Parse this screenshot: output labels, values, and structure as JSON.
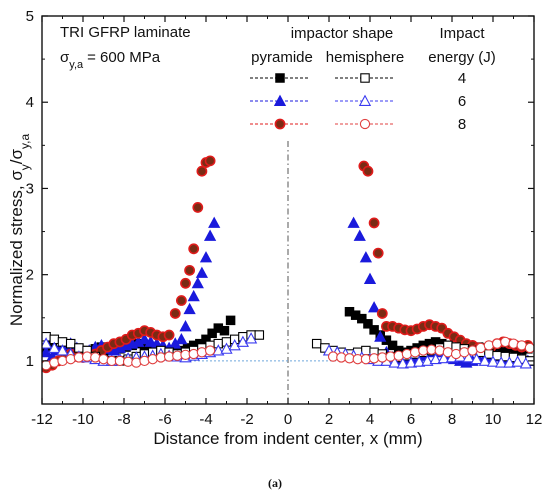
{
  "chart_data": {
    "type": "scatter",
    "title": "",
    "xlabel": "Distance from indent center, x (mm)",
    "ylabel": "Normalized stress, σy/σy,a",
    "xlim": [
      -12,
      12
    ],
    "ylim": [
      0.5,
      5
    ],
    "x_ticks": [
      -12,
      -10,
      -8,
      -6,
      -4,
      -2,
      0,
      2,
      4,
      6,
      8,
      10,
      12
    ],
    "y_ticks": [
      1,
      2,
      3,
      4,
      5
    ],
    "annotations": {
      "material": "TRI GFRP laminate",
      "stress_symbol": "σ",
      "stress_sub": "y,a",
      "stress_value": "= 600 MPa"
    },
    "legend": {
      "header_group": "impactor shape",
      "col_pyramide": "pyramide",
      "col_hemisphere": "hemisphere",
      "energy_title_1": "Impact",
      "energy_title_2": "energy (J)",
      "placement": "top-right",
      "energies": [
        "4",
        "6",
        "8"
      ]
    },
    "reference_line": {
      "y": 1.0,
      "style": "dotted",
      "color": "#6fa8dc"
    },
    "center_line": {
      "x": 0,
      "style": "dashed",
      "color": "#555555"
    },
    "series": [
      {
        "shape": "pyramide",
        "energy": "4",
        "marker": "square",
        "filled": true,
        "color": "#000000",
        "x": [
          -11.8,
          -11.5,
          -11.2,
          -10.9,
          -10.6,
          -10.3,
          -10.0,
          -9.7,
          -9.4,
          -9.1,
          -8.8,
          -8.5,
          -8.2,
          -7.9,
          -7.6,
          -7.3,
          -7.0,
          -6.7,
          -6.4,
          -6.1,
          -5.8,
          -5.5,
          -5.2,
          -4.9,
          -4.6,
          -4.3,
          -4.0,
          -3.7,
          -3.4,
          -3.1,
          -2.8,
          3.0,
          3.3,
          3.6,
          3.9,
          4.2,
          4.5,
          4.8,
          5.1,
          5.4,
          5.7,
          6.0,
          6.3,
          6.6,
          6.9,
          7.2,
          7.5,
          7.8,
          8.1,
          8.4,
          8.7,
          9.0,
          9.3,
          9.6,
          9.9,
          10.2,
          10.5,
          10.8,
          11.1,
          11.4,
          11.7
        ],
        "y": [
          1.15,
          1.2,
          1.12,
          1.18,
          1.16,
          1.14,
          1.12,
          1.1,
          1.14,
          1.16,
          1.12,
          1.15,
          1.14,
          1.16,
          1.18,
          1.2,
          1.15,
          1.14,
          1.12,
          1.1,
          1.08,
          1.1,
          1.12,
          1.15,
          1.18,
          1.2,
          1.25,
          1.32,
          1.38,
          1.35,
          1.47,
          1.57,
          1.53,
          1.49,
          1.43,
          1.36,
          1.3,
          1.24,
          1.18,
          1.12,
          1.1,
          1.12,
          1.15,
          1.18,
          1.2,
          1.22,
          1.2,
          1.18,
          1.16,
          1.15,
          1.14,
          1.15,
          1.16,
          1.15,
          1.14,
          1.12,
          1.13,
          1.15,
          1.14,
          1.13,
          1.14
        ]
      },
      {
        "shape": "pyramide",
        "energy": "6",
        "marker": "triangle",
        "filled": true,
        "color": "#1a1adc",
        "x": [
          -11.8,
          -11.5,
          -11.2,
          -10.9,
          -10.6,
          -10.3,
          -10.0,
          -9.7,
          -9.4,
          -9.1,
          -8.8,
          -8.5,
          -8.2,
          -7.9,
          -7.6,
          -7.3,
          -7.0,
          -6.7,
          -6.4,
          -6.1,
          -5.8,
          -5.5,
          -5.2,
          -5.0,
          -4.8,
          -4.6,
          -4.4,
          -4.2,
          -4.0,
          -3.8,
          -3.6,
          3.2,
          3.5,
          3.8,
          4.0,
          4.2,
          4.5,
          4.8,
          5.1,
          5.4,
          5.7,
          6.0,
          6.3,
          6.6,
          6.9,
          7.2,
          7.5,
          7.8,
          8.1,
          8.4,
          8.7,
          9.0,
          9.3,
          9.6,
          9.9,
          10.2,
          10.5,
          10.8,
          11.1,
          11.4,
          11.7
        ],
        "y": [
          1.1,
          1.05,
          1.12,
          1.18,
          1.2,
          1.15,
          1.1,
          1.12,
          1.16,
          1.18,
          1.14,
          1.12,
          1.15,
          1.18,
          1.2,
          1.22,
          1.25,
          1.22,
          1.2,
          1.18,
          1.15,
          1.2,
          1.25,
          1.4,
          1.6,
          1.75,
          1.9,
          2.02,
          2.2,
          2.45,
          2.6,
          2.6,
          2.45,
          2.2,
          1.95,
          1.62,
          1.28,
          1.1,
          1.04,
          1.02,
          1.0,
          1.02,
          1.04,
          1.06,
          1.1,
          1.12,
          1.1,
          1.05,
          1.02,
          1.0,
          0.98,
          1.0,
          1.02,
          1.04,
          1.06,
          1.05,
          1.03,
          1.02,
          1.0,
          1.01,
          1.0
        ]
      },
      {
        "shape": "pyramide",
        "energy": "8",
        "marker": "circle",
        "filled": true,
        "color": "#e01b1b",
        "x": [
          -11.8,
          -11.5,
          -11.2,
          -10.9,
          -10.6,
          -10.3,
          -10.0,
          -9.7,
          -9.4,
          -9.1,
          -8.8,
          -8.5,
          -8.2,
          -7.9,
          -7.6,
          -7.3,
          -7.0,
          -6.7,
          -6.4,
          -6.1,
          -5.8,
          -5.5,
          -5.2,
          -5.0,
          -4.8,
          -4.6,
          -4.4,
          -4.2,
          -4.0,
          -3.8,
          3.7,
          3.9,
          4.2,
          4.4,
          4.6,
          4.8,
          5.1,
          5.4,
          5.7,
          6.0,
          6.3,
          6.6,
          6.9,
          7.2,
          7.5,
          7.8,
          8.1,
          8.4,
          8.7,
          9.0,
          9.3,
          9.6,
          9.9,
          10.2,
          10.5,
          10.8,
          11.1,
          11.4,
          11.7
        ],
        "y": [
          0.92,
          0.95,
          1.0,
          1.05,
          1.08,
          1.05,
          1.04,
          1.05,
          1.08,
          1.12,
          1.16,
          1.2,
          1.22,
          1.25,
          1.3,
          1.32,
          1.35,
          1.33,
          1.3,
          1.28,
          1.3,
          1.55,
          1.7,
          1.9,
          2.05,
          2.3,
          2.78,
          3.2,
          3.3,
          3.32,
          3.26,
          3.2,
          2.6,
          2.25,
          1.55,
          1.4,
          1.4,
          1.38,
          1.36,
          1.35,
          1.37,
          1.4,
          1.42,
          1.4,
          1.38,
          1.32,
          1.28,
          1.24,
          1.2,
          1.18,
          1.15,
          1.14,
          1.16,
          1.2,
          1.22,
          1.2,
          1.18,
          1.16,
          1.18
        ]
      },
      {
        "shape": "hemisphere",
        "energy": "4",
        "marker": "square",
        "filled": false,
        "color": "#000000",
        "x": [
          -11.8,
          -11.4,
          -11.0,
          -10.6,
          -10.2,
          -9.8,
          -9.4,
          -9.0,
          -8.6,
          -8.2,
          -7.8,
          -7.4,
          -7.0,
          -6.6,
          -6.2,
          -5.8,
          -5.4,
          -5.0,
          -4.6,
          -4.2,
          -3.8,
          -3.4,
          -3.0,
          -2.6,
          -2.2,
          -1.8,
          -1.4,
          1.4,
          1.8,
          2.2,
          2.6,
          3.0,
          3.4,
          3.8,
          4.2,
          4.6,
          5.0,
          5.4,
          5.8,
          6.2,
          6.6,
          7.0,
          7.4,
          7.8,
          8.2,
          8.6,
          9.0,
          9.4,
          9.8,
          10.2,
          10.6,
          11.0,
          11.4,
          11.8
        ],
        "y": [
          1.28,
          1.25,
          1.22,
          1.2,
          1.15,
          1.12,
          1.05,
          1.02,
          1.0,
          1.0,
          1.02,
          1.05,
          1.08,
          1.1,
          1.12,
          1.1,
          1.08,
          1.1,
          1.12,
          1.15,
          1.18,
          1.2,
          1.22,
          1.25,
          1.28,
          1.3,
          1.3,
          1.2,
          1.15,
          1.12,
          1.1,
          1.08,
          1.1,
          1.12,
          1.1,
          1.08,
          1.05,
          1.04,
          1.06,
          1.08,
          1.1,
          1.12,
          1.15,
          1.18,
          1.16,
          1.14,
          1.12,
          1.1,
          1.08,
          1.06,
          1.05,
          1.04,
          1.02,
          1.0
        ]
      },
      {
        "shape": "hemisphere",
        "energy": "6",
        "marker": "triangle",
        "filled": false,
        "color": "#3a3af0",
        "x": [
          -11.8,
          -11.4,
          -11.0,
          -10.6,
          -10.2,
          -9.8,
          -9.4,
          -9.0,
          -8.6,
          -8.2,
          -7.8,
          -7.4,
          -7.0,
          -6.6,
          -6.2,
          -5.8,
          -5.4,
          -5.0,
          -4.6,
          -4.2,
          -3.8,
          -3.4,
          -3.0,
          -2.6,
          -2.2,
          -1.8,
          2.0,
          2.4,
          2.8,
          3.2,
          3.6,
          4.0,
          4.4,
          4.8,
          5.2,
          5.6,
          6.0,
          6.4,
          6.8,
          7.2,
          7.6,
          8.0,
          8.4,
          8.8,
          9.2,
          9.6,
          10.0,
          10.4,
          10.8,
          11.2,
          11.6
        ],
        "y": [
          1.2,
          1.15,
          1.12,
          1.08,
          1.05,
          1.04,
          1.02,
          1.0,
          1.0,
          1.02,
          1.03,
          1.04,
          1.05,
          1.06,
          1.08,
          1.06,
          1.05,
          1.04,
          1.06,
          1.08,
          1.1,
          1.12,
          1.14,
          1.18,
          1.22,
          1.26,
          1.12,
          1.1,
          1.08,
          1.06,
          1.04,
          1.02,
          1.0,
          1.0,
          0.98,
          0.97,
          0.98,
          0.99,
          1.0,
          1.02,
          1.03,
          1.04,
          1.05,
          1.04,
          1.02,
          1.0,
          0.99,
          0.98,
          0.98,
          0.99,
          0.97
        ]
      },
      {
        "shape": "hemisphere",
        "energy": "8",
        "marker": "circle",
        "filled": false,
        "color": "#e04040",
        "x": [
          -11.8,
          -11.4,
          -11.0,
          -10.6,
          -10.2,
          -9.8,
          -9.4,
          -9.0,
          -8.6,
          -8.2,
          -7.8,
          -7.4,
          -7.0,
          -6.6,
          -6.2,
          -5.8,
          -5.4,
          -5.0,
          -4.6,
          -4.2,
          -3.8,
          2.2,
          2.6,
          3.0,
          3.4,
          3.8,
          4.2,
          4.6,
          5.0,
          5.4,
          5.8,
          6.2,
          6.6,
          7.0,
          7.4,
          7.8,
          8.2,
          8.6,
          9.0,
          9.4,
          9.8,
          10.2,
          10.6,
          11.0,
          11.4,
          11.8
        ],
        "y": [
          0.95,
          0.98,
          1.0,
          1.02,
          1.04,
          1.05,
          1.04,
          1.02,
          1.0,
          1.0,
          0.99,
          0.98,
          1.0,
          1.02,
          1.04,
          1.05,
          1.06,
          1.07,
          1.08,
          1.1,
          1.12,
          1.05,
          1.04,
          1.03,
          1.02,
          1.02,
          1.03,
          1.04,
          1.05,
          1.06,
          1.08,
          1.1,
          1.12,
          1.13,
          1.12,
          1.1,
          1.08,
          1.1,
          1.12,
          1.15,
          1.18,
          1.2,
          1.22,
          1.2,
          1.18,
          1.15
        ]
      }
    ]
  },
  "caption": "(a)"
}
